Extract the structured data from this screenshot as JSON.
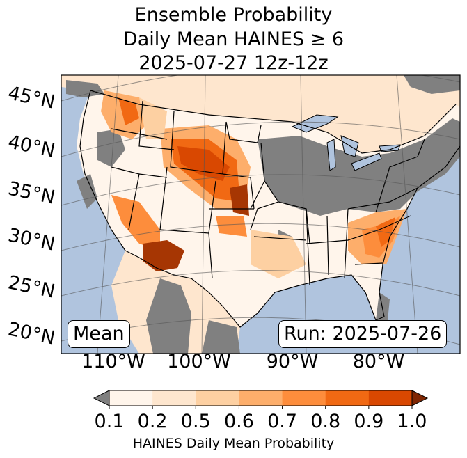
{
  "title": {
    "line1": "Ensemble Probability",
    "line2": "Daily Mean HAINES ≥ 6",
    "line3": "2025-07-27 12z-12z"
  },
  "map": {
    "latitude_labels": [
      "45°N",
      "40°N",
      "35°N",
      "30°N",
      "25°N",
      "20°N"
    ],
    "longitude_labels": [
      "110°W",
      "100°W",
      "90°W",
      "80°W"
    ],
    "stat_label": "Mean",
    "run_label": "Run: 2025-07-26",
    "colors": {
      "ocean": "#b0c4de",
      "below_threshold": "#808080",
      "land_low": "#fff5eb"
    }
  },
  "colorbar": {
    "label": "HAINES Daily Mean Probability",
    "ticks": [
      "0.1",
      "0.2",
      "0.5",
      "0.6",
      "0.7",
      "0.8",
      "0.9",
      "1.0"
    ],
    "bins": [
      {
        "from": 0.1,
        "to": 0.2,
        "color": "#fff5eb"
      },
      {
        "from": 0.2,
        "to": 0.5,
        "color": "#fee6ce"
      },
      {
        "from": 0.5,
        "to": 0.6,
        "color": "#fdd0a2"
      },
      {
        "from": 0.6,
        "to": 0.7,
        "color": "#fdae6b"
      },
      {
        "from": 0.7,
        "to": 0.8,
        "color": "#fd8d3c"
      },
      {
        "from": 0.8,
        "to": 0.9,
        "color": "#f16913"
      },
      {
        "from": 0.9,
        "to": 1.0,
        "color": "#d94801"
      }
    ],
    "under_color": "#808080",
    "over_color": "#7f2704"
  }
}
